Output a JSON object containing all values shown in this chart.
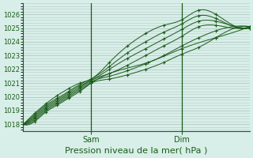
{
  "bg_color": "#d8eee8",
  "grid_color": "#b8ccc8",
  "line_color": "#1a5c1a",
  "marker_color": "#1a5c1a",
  "xlabel": "Pression niveau de la mer( hPa )",
  "xlabel_fontsize": 8,
  "ylim": [
    1017.5,
    1026.8
  ],
  "yticks": [
    1018,
    1019,
    1020,
    1021,
    1022,
    1023,
    1024,
    1025,
    1026
  ],
  "xtick_labels": [
    "Sam",
    "Dim"
  ],
  "xtick_positions": [
    0.3,
    0.7
  ],
  "vline_positions": [
    0.3,
    0.7
  ],
  "num_points": 55,
  "series": [
    {
      "x": [
        0.0,
        0.05,
        0.1,
        0.15,
        0.2,
        0.25,
        0.3,
        0.38,
        0.46,
        0.54,
        0.62,
        0.7,
        0.775,
        0.85,
        1.0
      ],
      "y": [
        1018.0,
        1018.8,
        1019.5,
        1020.1,
        1020.6,
        1021.0,
        1021.3,
        1022.5,
        1023.7,
        1024.6,
        1025.2,
        1025.6,
        1026.3,
        1026.0,
        1025.1
      ]
    },
    {
      "x": [
        0.0,
        0.05,
        0.1,
        0.15,
        0.2,
        0.25,
        0.3,
        0.38,
        0.46,
        0.54,
        0.62,
        0.7,
        0.775,
        0.85,
        1.0
      ],
      "y": [
        1018.0,
        1018.7,
        1019.4,
        1019.9,
        1020.4,
        1020.9,
        1021.3,
        1022.2,
        1023.2,
        1024.0,
        1024.7,
        1025.3,
        1025.9,
        1025.7,
        1025.0
      ]
    },
    {
      "x": [
        0.0,
        0.05,
        0.1,
        0.15,
        0.2,
        0.25,
        0.3,
        0.38,
        0.46,
        0.54,
        0.62,
        0.7,
        0.775,
        0.85,
        1.0
      ],
      "y": [
        1018.0,
        1018.6,
        1019.3,
        1019.8,
        1020.3,
        1020.8,
        1021.2,
        1022.0,
        1022.8,
        1023.5,
        1024.2,
        1024.9,
        1025.5,
        1025.5,
        1025.0
      ]
    },
    {
      "x": [
        0.0,
        0.05,
        0.1,
        0.15,
        0.2,
        0.25,
        0.3,
        0.38,
        0.46,
        0.54,
        0.62,
        0.7,
        0.775,
        0.85,
        1.0
      ],
      "y": [
        1018.0,
        1018.5,
        1019.2,
        1019.7,
        1020.2,
        1020.7,
        1021.2,
        1021.7,
        1022.3,
        1023.0,
        1023.7,
        1024.4,
        1025.1,
        1025.2,
        1025.1
      ]
    },
    {
      "x": [
        0.0,
        0.05,
        0.1,
        0.15,
        0.2,
        0.25,
        0.3,
        0.38,
        0.46,
        0.54,
        0.62,
        0.7,
        0.775,
        0.85,
        1.0
      ],
      "y": [
        1018.0,
        1018.4,
        1019.1,
        1019.6,
        1020.1,
        1020.6,
        1021.1,
        1021.5,
        1021.9,
        1022.4,
        1023.0,
        1023.7,
        1024.3,
        1024.8,
        1025.1
      ]
    },
    {
      "x": [
        0.0,
        0.05,
        0.1,
        0.15,
        0.2,
        0.25,
        0.3,
        0.38,
        0.46,
        0.54,
        0.62,
        0.7,
        0.775,
        0.85,
        1.0
      ],
      "y": [
        1018.0,
        1018.3,
        1019.0,
        1019.5,
        1020.0,
        1020.5,
        1021.0,
        1021.3,
        1021.6,
        1022.0,
        1022.5,
        1023.1,
        1023.6,
        1024.3,
        1025.1
      ]
    },
    {
      "x": [
        0.0,
        0.05,
        0.1,
        0.15,
        0.2,
        0.25,
        0.3,
        0.55,
        0.7,
        0.85,
        1.0
      ],
      "y": [
        1018.0,
        1018.2,
        1018.9,
        1019.4,
        1019.9,
        1020.4,
        1021.0,
        1022.5,
        1023.5,
        1024.3,
        1025.1
      ]
    }
  ]
}
